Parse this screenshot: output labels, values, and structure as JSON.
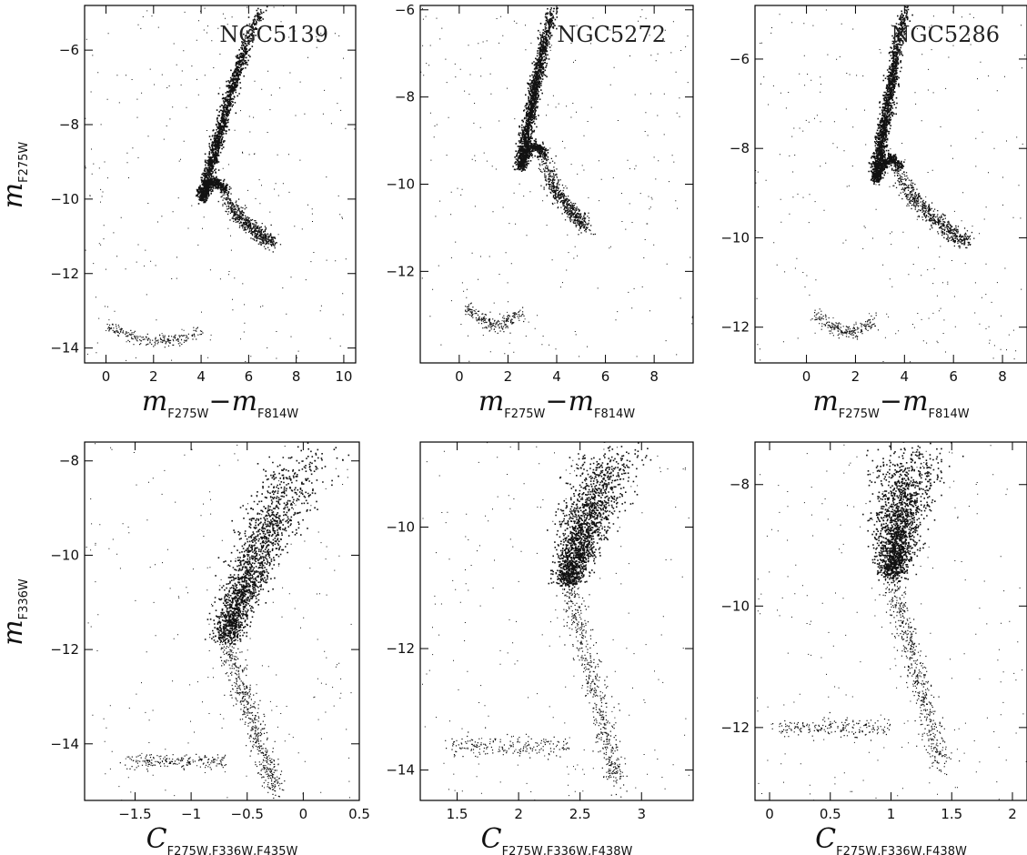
{
  "chart_data": [
    {
      "type": "scatter",
      "cluster": "NGC5139",
      "xlabel": {
        "main": "m",
        "sub1": "F275W",
        "op": "−",
        "main2": "m",
        "sub2": "F814W"
      },
      "ylabel": {
        "main": "m",
        "sub": "F275W"
      },
      "xlim": [
        -0.9,
        10.5
      ],
      "ylim": [
        -4.8,
        -14.4
      ],
      "xticks": [
        0,
        2,
        4,
        6,
        8,
        10
      ],
      "yticks": [
        -6,
        -8,
        -10,
        -12,
        -14
      ],
      "features": {
        "turnoff_color": 4.0,
        "turnoff_mag": -10.0,
        "rgb_tip_color": 7.0,
        "rgb_tip_mag": -11.2,
        "hb_mag": -13.4,
        "hb_blue_color": 0.0,
        "ms_bottom_color": 6.6
      }
    },
    {
      "type": "scatter",
      "cluster": "NGC5272",
      "xlabel": {
        "main": "m",
        "sub1": "F275W",
        "op": "−",
        "main2": "m",
        "sub2": "F814W"
      },
      "ylabel": {
        "main": "",
        "sub": ""
      },
      "xlim": [
        -1.6,
        9.6
      ],
      "ylim": [
        -5.9,
        -14.1
      ],
      "xticks": [
        0,
        2,
        4,
        6,
        8
      ],
      "yticks": [
        -6,
        -8,
        -10,
        -12
      ],
      "features": {
        "turnoff_color": 2.5,
        "turnoff_mag": -9.6,
        "rgb_tip_color": 5.2,
        "rgb_tip_mag": -11.0,
        "hb_mag": -12.8,
        "hb_blue_color": 0.3,
        "ms_bottom_color": 3.9
      }
    },
    {
      "type": "scatter",
      "cluster": "NGC5286",
      "xlabel": {
        "main": "m",
        "sub1": "F275W",
        "op": "−",
        "main2": "m",
        "sub2": "F814W"
      },
      "ylabel": {
        "main": "",
        "sub": ""
      },
      "xlim": [
        -2.1,
        9.0
      ],
      "ylim": [
        -4.8,
        -12.8
      ],
      "xticks": [
        0,
        2,
        4,
        6,
        8
      ],
      "yticks": [
        -6,
        -8,
        -10,
        -12
      ],
      "features": {
        "turnoff_color": 2.8,
        "turnoff_mag": -8.7,
        "rgb_tip_color": 6.5,
        "rgb_tip_mag": -10.1,
        "hb_mag": -11.7,
        "hb_blue_color": 0.3,
        "ms_bottom_color": 4.1
      }
    },
    {
      "type": "scatter",
      "cluster": "NGC5139",
      "xlabel": {
        "main": "C",
        "sub1": "F275W,F336W,F435W"
      },
      "ylabel": {
        "main": "m",
        "sub": "F336W"
      },
      "xlim": [
        -1.95,
        0.5
      ],
      "ylim": [
        -7.6,
        -15.2
      ],
      "xticks": [
        -1.5,
        -1,
        -0.5,
        0,
        0.5
      ],
      "yticks": [
        -8,
        -10,
        -12,
        -14
      ],
      "xtick_labels": [
        "−1.5",
        "−1",
        "−0.5",
        "0",
        "0.5"
      ],
      "features": {
        "sgb_c": -0.7,
        "sgb_mag": -11.8,
        "rgb_top_c": -0.25,
        "rgb_top_mag": -15.0,
        "hb_mag": -14.35,
        "hb_blue_c": -1.6,
        "ms_bottom_c": 0.15
      }
    },
    {
      "type": "scatter",
      "cluster": "NGC5272",
      "xlabel": {
        "main": "C",
        "sub1": "F275W,F336W,F438W"
      },
      "ylabel": {
        "main": "",
        "sub": ""
      },
      "xlim": [
        1.2,
        3.42
      ],
      "ylim": [
        -8.6,
        -14.5
      ],
      "xticks": [
        1.5,
        2,
        2.5,
        3
      ],
      "yticks": [
        -10,
        -12,
        -14
      ],
      "xtick_labels": [
        "1.5",
        "2",
        "2.5",
        "3"
      ],
      "features": {
        "sgb_c": 2.4,
        "sgb_mag": -10.9,
        "rgb_top_c": 2.8,
        "rgb_top_mag": -14.2,
        "hb_mag": -13.6,
        "hb_blue_c": 1.4,
        "ms_bottom_c": 2.85
      }
    },
    {
      "type": "scatter",
      "cluster": "NGC5286",
      "xlabel": {
        "main": "C",
        "sub1": "F275W,F336W,F438W"
      },
      "ylabel": {
        "main": "",
        "sub": ""
      },
      "xlim": [
        -0.12,
        2.12
      ],
      "ylim": [
        -7.3,
        -13.2
      ],
      "xticks": [
        0,
        0.5,
        1,
        1.5,
        2
      ],
      "yticks": [
        -8,
        -10,
        -12
      ],
      "xtick_labels": [
        "0",
        "0.5",
        "1",
        "1.5",
        "2"
      ],
      "features": {
        "sgb_c": 1.0,
        "sgb_mag": -9.5,
        "rgb_top_c": 1.4,
        "rgb_top_mag": -12.6,
        "hb_mag": -12.0,
        "hb_blue_c": 0.05,
        "ms_bottom_c": 1.2
      }
    }
  ]
}
